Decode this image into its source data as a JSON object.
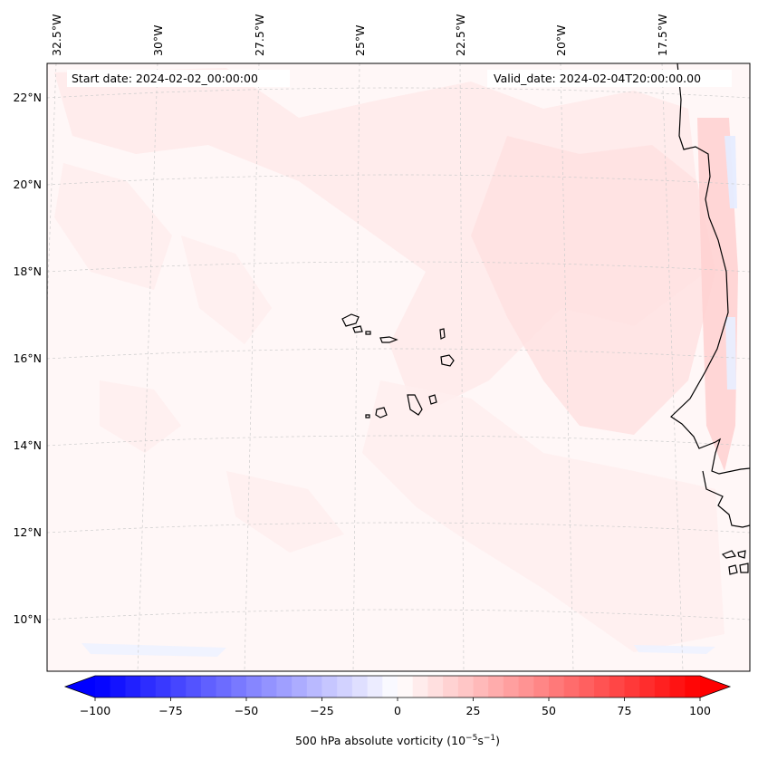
{
  "map": {
    "start_date": "Start date: 2024-02-02_00:00:00",
    "valid_date": "Valid_date: 2024-02-04T20:00:00.00",
    "longitude_labels": [
      "32.5°W",
      "30°W",
      "27.5°W",
      "25°W",
      "22.5°W",
      "20°W",
      "17.5°W"
    ],
    "latitude_labels": [
      "22°N",
      "20°N",
      "18°N",
      "16°N",
      "14°N",
      "12°N",
      "10°N"
    ],
    "projection_style": "conic, curved gridlines",
    "gridlines": "on (dashed, light gray)",
    "coastline_color": "#000000",
    "field_colormap": "bwr (blue-white-red)"
  },
  "colorbar": {
    "label_main": "500 hPa absolute vorticity (10",
    "label_exp1": "−5",
    "label_mid": "s",
    "label_exp2": "−1",
    "label_end": ")",
    "ticks": [
      "−100",
      "−75",
      "−50",
      "−25",
      "0",
      "25",
      "50",
      "75",
      "100"
    ],
    "tick_values": [
      -100,
      -75,
      -50,
      -25,
      0,
      25,
      50,
      75,
      100
    ],
    "range": [
      -100,
      100
    ],
    "n_levels": 40,
    "low_color": "#0000ff",
    "mid_color": "#ffffff",
    "high_color": "#ff0000",
    "extend": "both"
  }
}
